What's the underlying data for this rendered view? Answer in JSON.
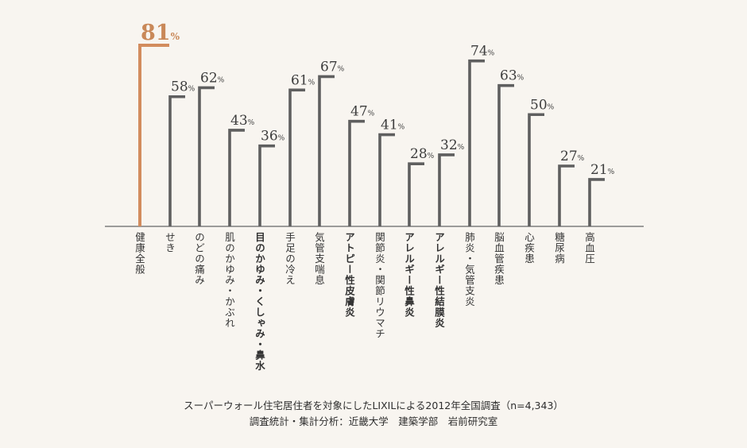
{
  "chart_data": {
    "type": "bar",
    "categories": [
      "健康全般",
      "せき",
      "のどの痛み",
      "肌のかゆみ・かぶれ",
      "目のかゆみ・くしゃみ・鼻水",
      "手足の冷え",
      "気管支喘息",
      "アトピー性皮膚炎",
      "関節炎・関節リウマチ",
      "アレルギー性鼻炎",
      "アレルギー性結膜炎",
      "肺炎・気管支炎",
      "脳血管疾患",
      "心疾患",
      "糖尿病",
      "高血圧"
    ],
    "values": [
      81,
      58,
      62,
      43,
      36,
      61,
      67,
      47,
      41,
      28,
      32,
      74,
      63,
      50,
      27,
      21
    ],
    "value_labels": [
      "81",
      "58",
      "62",
      "43",
      "36",
      "61",
      "67",
      "47",
      "41",
      "28",
      "32",
      "74",
      "63",
      "50",
      "27",
      "21"
    ],
    "unit": "%",
    "bold_categories": [
      4,
      7,
      9,
      10
    ],
    "highlight_index": 0,
    "ylim": [
      0,
      81
    ],
    "grid": false,
    "colors": {
      "bar": "#5f5f5f",
      "highlight": "#d28c5e",
      "highlight_text": "#c98858",
      "baseline": "#666666"
    }
  },
  "footer": {
    "line1": "スーパーウォール住宅居住者を対象にしたLIXILによる2012年全国調査（n=4,343）",
    "line2": "調査統計・集計分析：近畿大学　建築学部　岩前研究室"
  }
}
